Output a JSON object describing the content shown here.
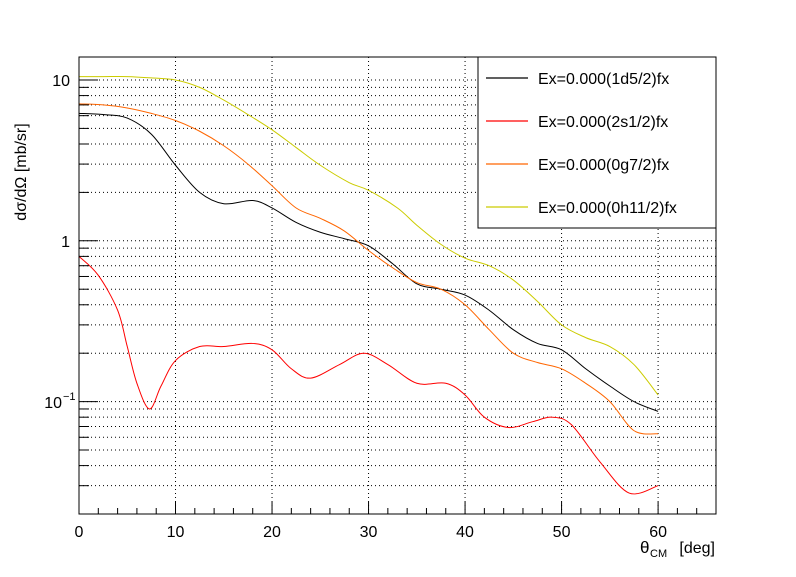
{
  "chart_data": {
    "type": "line",
    "title": "",
    "xlabel_main": "θ",
    "xlabel_sub": "CM",
    "xlabel_unit": "[deg]",
    "ylabel": "dσ/dΩ [mb/sr]",
    "xlim": [
      0,
      66
    ],
    "ylim": [
      0.02,
      13.9
    ],
    "yscale": "log",
    "grid": true,
    "legend_placement": "top-right",
    "x_ticks": [
      "0",
      "10",
      "20",
      "30",
      "40",
      "50",
      "60"
    ],
    "y_ticks": [
      {
        "label": "10",
        "value": 10
      },
      {
        "label": "1",
        "value": 1
      },
      {
        "label": "10",
        "sup": "−1",
        "value": 0.1
      }
    ],
    "series": [
      {
        "name": "Ex=0.000(1d5/2)fx",
        "color": "#000000",
        "x": [
          0,
          2.5,
          5,
          7.5,
          10,
          12.5,
          15,
          18,
          20,
          22.5,
          25,
          27.5,
          30,
          32.5,
          35,
          37.5,
          40,
          42.5,
          45,
          47.5,
          50,
          52.5,
          55,
          57.5,
          60
        ],
        "y": [
          6.2,
          6.1,
          5.8,
          4.6,
          2.95,
          2.0,
          1.7,
          1.78,
          1.6,
          1.3,
          1.13,
          1.03,
          0.93,
          0.72,
          0.54,
          0.5,
          0.46,
          0.37,
          0.28,
          0.23,
          0.21,
          0.16,
          0.125,
          0.1,
          0.087
        ]
      },
      {
        "name": "Ex=0.000(2s1/2)fx",
        "color": "#ff0000",
        "x": [
          0,
          2,
          4,
          5,
          6,
          7.3,
          8.5,
          10,
          12.5,
          15,
          18,
          20,
          22,
          24,
          27,
          29.5,
          32,
          35,
          38,
          40,
          42,
          44.5,
          47,
          49,
          51,
          54,
          57,
          60
        ],
        "y": [
          0.8,
          0.61,
          0.37,
          0.22,
          0.13,
          0.09,
          0.125,
          0.18,
          0.22,
          0.22,
          0.23,
          0.21,
          0.16,
          0.14,
          0.17,
          0.2,
          0.17,
          0.13,
          0.13,
          0.11,
          0.08,
          0.069,
          0.075,
          0.08,
          0.072,
          0.042,
          0.027,
          0.03
        ]
      },
      {
        "name": "Ex=0.000(0g7/2)fx",
        "color": "#ff6600",
        "x": [
          0,
          2.5,
          5,
          7.5,
          10,
          12.5,
          15,
          17.5,
          20,
          22.5,
          25,
          27.5,
          30,
          32.5,
          35,
          37.5,
          40,
          42.5,
          45,
          47.5,
          50,
          52.5,
          55,
          57.5,
          60
        ],
        "y": [
          7.1,
          7.0,
          6.7,
          6.2,
          5.6,
          4.8,
          3.9,
          3.0,
          2.2,
          1.6,
          1.38,
          1.15,
          0.87,
          0.68,
          0.55,
          0.5,
          0.4,
          0.28,
          0.2,
          0.175,
          0.16,
          0.13,
          0.1,
          0.066,
          0.063
        ]
      },
      {
        "name": "Ex=0.000(0h11/2)fx",
        "color": "#cccc00",
        "x": [
          0,
          2.5,
          5,
          7.5,
          10,
          12.5,
          15,
          17.5,
          20,
          22.5,
          25,
          28,
          30,
          33,
          35,
          37.5,
          40,
          42.5,
          45,
          47.5,
          50,
          52.5,
          55,
          57.5,
          60
        ],
        "y": [
          10.5,
          10.5,
          10.5,
          10.3,
          10,
          9,
          7.5,
          6.1,
          4.9,
          3.8,
          2.95,
          2.3,
          2.06,
          1.6,
          1.25,
          0.95,
          0.78,
          0.7,
          0.57,
          0.42,
          0.3,
          0.25,
          0.22,
          0.17,
          0.11
        ]
      }
    ]
  }
}
